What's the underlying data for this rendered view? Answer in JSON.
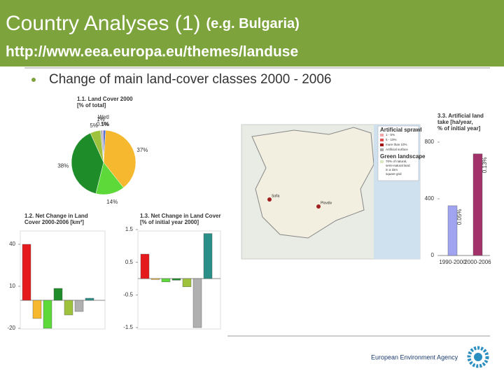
{
  "header": {
    "title": "Country Analyses (1)",
    "subtitle": "(e.g. Bulgaria)",
    "url": "http://www.eea.europa.eu/themes/landuse"
  },
  "bullet": "Change of main land-cover classes 2000 - 2006",
  "chart_data": [
    {
      "type": "pie",
      "title_lines": [
        "1.1. Land Cover 2000",
        "[% of total]"
      ],
      "values": [
        1,
        37,
        14,
        38,
        5,
        1,
        0.5
      ],
      "value_labels": [
        "1%",
        "37%",
        "14%",
        "38%",
        "5%",
        "1%",
        "0.5%"
      ],
      "colors": [
        "#3d5fc4",
        "#f5b82e",
        "#5ed93a",
        "#1f8c2a",
        "#9ec23c",
        "#b0b0b0",
        "#9a6fd0"
      ],
      "annotation": "Wetl"
    },
    {
      "type": "bar",
      "title_lines": [
        "1.2. Net Change in Land",
        "Cover 2000-2006 [km²]"
      ],
      "values": [
        40,
        -13,
        -20,
        8.5,
        -10.5,
        -8,
        1.5
      ],
      "colors": [
        "#e41a1c",
        "#f5b82e",
        "#5ed93a",
        "#1f8c2a",
        "#9ec23c",
        "#b0b0b0",
        "#2a8f86"
      ],
      "ylim": [
        -20,
        45
      ],
      "yticks": [
        40,
        10,
        -20
      ]
    },
    {
      "type": "bar",
      "title_lines": [
        "1.3. Net Change in Land Cover",
        "[% of initial year 2000]"
      ],
      "values": [
        0.75,
        -0.03,
        -0.1,
        -0.05,
        -0.25,
        -1.5,
        1.38
      ],
      "colors": [
        "#e41a1c",
        "#f5b82e",
        "#5ed93a",
        "#1f8c2a",
        "#9ec23c",
        "#b0b0b0",
        "#2a8f86"
      ],
      "ylim": [
        -1.5,
        1.5
      ],
      "yticks": [
        1.5,
        0.5,
        -0.5,
        -1.5
      ]
    },
    {
      "type": "bar",
      "title_lines": [
        "3.3. Artificial land",
        "take [ha/year,",
        "% of initial year]"
      ],
      "categories": [
        "1990-2000",
        "2000-2006"
      ],
      "values": [
        351,
        717
      ],
      "bar_labels": [
        "0.05%",
        "0.13%"
      ],
      "colors": [
        "#9fa3f0",
        "#a2336a"
      ],
      "ylim": [
        0,
        800
      ],
      "yticks": [
        0,
        400,
        800
      ]
    }
  ],
  "map": {
    "legend_title": "Artificial sprawl",
    "legend": [
      "1 - 5%",
      "5 - 10%",
      "more than 10%",
      "Artificial surface"
    ],
    "legend_title2": "Green landscape",
    "legend_note": [
      "70% of natural,",
      "semi-natural land",
      "in a 1km",
      "square grid"
    ],
    "cities": [
      "Sofia",
      "Plovdiv"
    ]
  },
  "footer": "European Environment Agency"
}
